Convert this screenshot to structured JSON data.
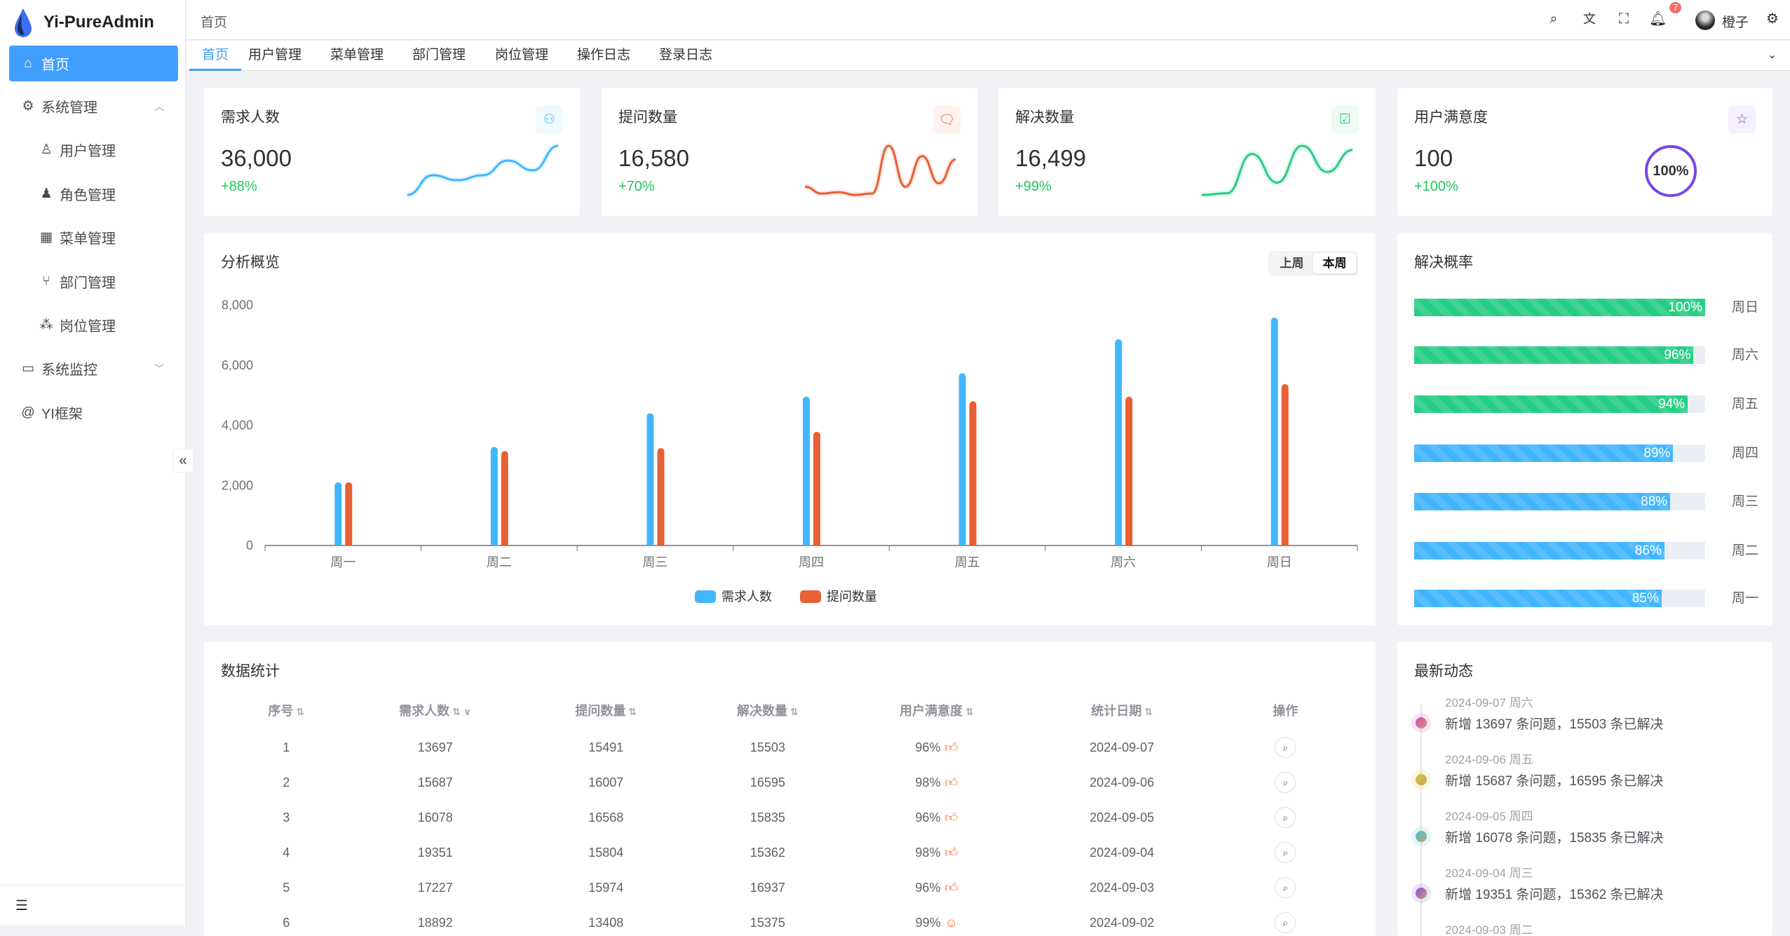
{
  "app": {
    "title": "Yi-PureAdmin"
  },
  "sidebar": {
    "items": [
      {
        "label": "首页",
        "icon": "home-icon",
        "active": true
      },
      {
        "label": "系统管理",
        "icon": "gear-icon",
        "expanded": true
      },
      {
        "label": "用户管理",
        "icon": "user-icon"
      },
      {
        "label": "角色管理",
        "icon": "role-icon"
      },
      {
        "label": "菜单管理",
        "icon": "grid-icon"
      },
      {
        "label": "部门管理",
        "icon": "branch-icon"
      },
      {
        "label": "岗位管理",
        "icon": "org-icon"
      },
      {
        "label": "系统监控",
        "icon": "monitor-icon",
        "expanded": false
      },
      {
        "label": "YI框架",
        "icon": "at-icon"
      }
    ]
  },
  "header": {
    "breadcrumb": "首页",
    "user": "橙子",
    "notifications": "7"
  },
  "tabs": [
    "首页",
    "用户管理",
    "菜单管理",
    "部门管理",
    "岗位管理",
    "操作日志",
    "登录日志"
  ],
  "stats": [
    {
      "title": "需求人数",
      "value": "36,000",
      "change": "+88%",
      "color": "#41b6ff",
      "icon": "users-icon",
      "trend": [
        2,
        4,
        3.5,
        4,
        5.5,
        4.5,
        7
      ]
    },
    {
      "title": "提问数量",
      "value": "16,580",
      "change": "+70%",
      "color": "#e85f33",
      "icon": "chat-icon",
      "trend": [
        3,
        2,
        2.2,
        1.8,
        2,
        9,
        3,
        7.5,
        3.5,
        7
      ]
    },
    {
      "title": "解决数量",
      "value": "16,499",
      "change": "+99%",
      "color": "#26ce83",
      "icon": "chat-check-icon",
      "trend": [
        1,
        1.2,
        6,
        2.5,
        7,
        3.8,
        6.5
      ]
    },
    {
      "title": "用户满意度",
      "value": "100",
      "change": "+100%",
      "color": "#7846e5",
      "icon": "star-icon",
      "ring": "100%",
      "ring_value": 100
    }
  ],
  "overview": {
    "title": "分析概览",
    "buttons": [
      "上周",
      "本周"
    ],
    "selected": "本周"
  },
  "chart_data": {
    "type": "bar",
    "categories": [
      "周一",
      "周二",
      "周三",
      "周四",
      "周五",
      "周六",
      "周日"
    ],
    "series": [
      {
        "name": "需求人数",
        "color": "#41b6ff",
        "values": [
          2100,
          3280,
          4400,
          4950,
          5730,
          6860,
          7580
        ]
      },
      {
        "name": "提问数量",
        "color": "#e86033",
        "values": [
          2100,
          3140,
          3240,
          3780,
          4800,
          4950,
          5370
        ]
      }
    ],
    "ylim": [
      0,
      8000
    ],
    "yticks": [
      "0",
      "2,000",
      "4,000",
      "6,000",
      "8,000"
    ],
    "legend": "bottom-center",
    "grid": false
  },
  "rates": {
    "title": "解决概率",
    "items": [
      {
        "day": "周日",
        "pct": 100,
        "label": "100%",
        "color": "#26ce83"
      },
      {
        "day": "周六",
        "pct": 96,
        "label": "96%",
        "color": "#26ce83"
      },
      {
        "day": "周五",
        "pct": 94,
        "label": "94%",
        "color": "#26ce83"
      },
      {
        "day": "周四",
        "pct": 89,
        "label": "89%",
        "color": "#41b6ff"
      },
      {
        "day": "周三",
        "pct": 88,
        "label": "88%",
        "color": "#41b6ff"
      },
      {
        "day": "周二",
        "pct": 86,
        "label": "86%",
        "color": "#41b6ff"
      },
      {
        "day": "周一",
        "pct": 85,
        "label": "85%",
        "color": "#41b6ff"
      }
    ]
  },
  "table": {
    "title": "数据统计",
    "columns": [
      "序号",
      "需求人数",
      "提问数量",
      "解决数量",
      "用户满意度",
      "统计日期",
      "操作"
    ],
    "rows": [
      [
        "1",
        "13697",
        "15491",
        "15503",
        "96%",
        "2024-09-07"
      ],
      [
        "2",
        "15687",
        "16007",
        "16595",
        "98%",
        "2024-09-06"
      ],
      [
        "3",
        "16078",
        "16568",
        "15835",
        "96%",
        "2024-09-05"
      ],
      [
        "4",
        "19351",
        "15804",
        "15362",
        "98%",
        "2024-09-04"
      ],
      [
        "5",
        "17227",
        "15974",
        "16937",
        "96%",
        "2024-09-03"
      ],
      [
        "6",
        "18892",
        "13408",
        "15375",
        "99%",
        "2024-09-02"
      ]
    ]
  },
  "timeline": {
    "title": "最新动态",
    "items": [
      {
        "date": "2024-09-07 周六",
        "text": "新增 13697 条问题，15503 条已解决",
        "color": "#d946b8"
      },
      {
        "date": "2024-09-06 周五",
        "text": "新增 15687 条问题，16595 条已解决",
        "color": "#d4c83a"
      },
      {
        "date": "2024-09-05 周四",
        "text": "新增 16078 条问题，15835 条已解决",
        "color": "#3cc8d4"
      },
      {
        "date": "2024-09-04 周三",
        "text": "新增 19351 条问题，15362 条已解决",
        "color": "#8b4ae0"
      },
      {
        "date": "2024-09-03 周二",
        "text": "",
        "color": "#41b6ff"
      }
    ]
  }
}
